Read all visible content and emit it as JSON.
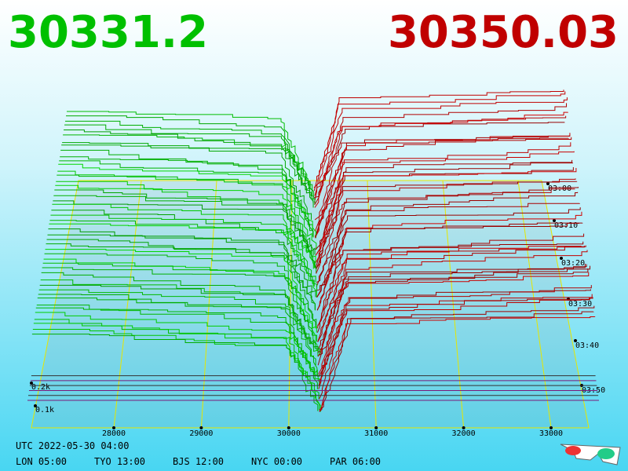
{
  "bid_price": 30331.2,
  "ask_price": 30350.03,
  "price_axis": [
    28000,
    29000,
    30000,
    31000,
    32000,
    33000
  ],
  "time_axis": [
    "03:00",
    "03:10",
    "03:20",
    "03:30",
    "03:40",
    "03:50"
  ],
  "depth_axis": [
    "0.2k",
    "0.1k"
  ],
  "footer": {
    "utc": "UTC 2022-05-30 04:00",
    "zones": [
      "LON 05:00",
      "TYO 13:00",
      "BJS 12:00",
      "NYC 00:00",
      "PAR 06:00"
    ]
  }
}
